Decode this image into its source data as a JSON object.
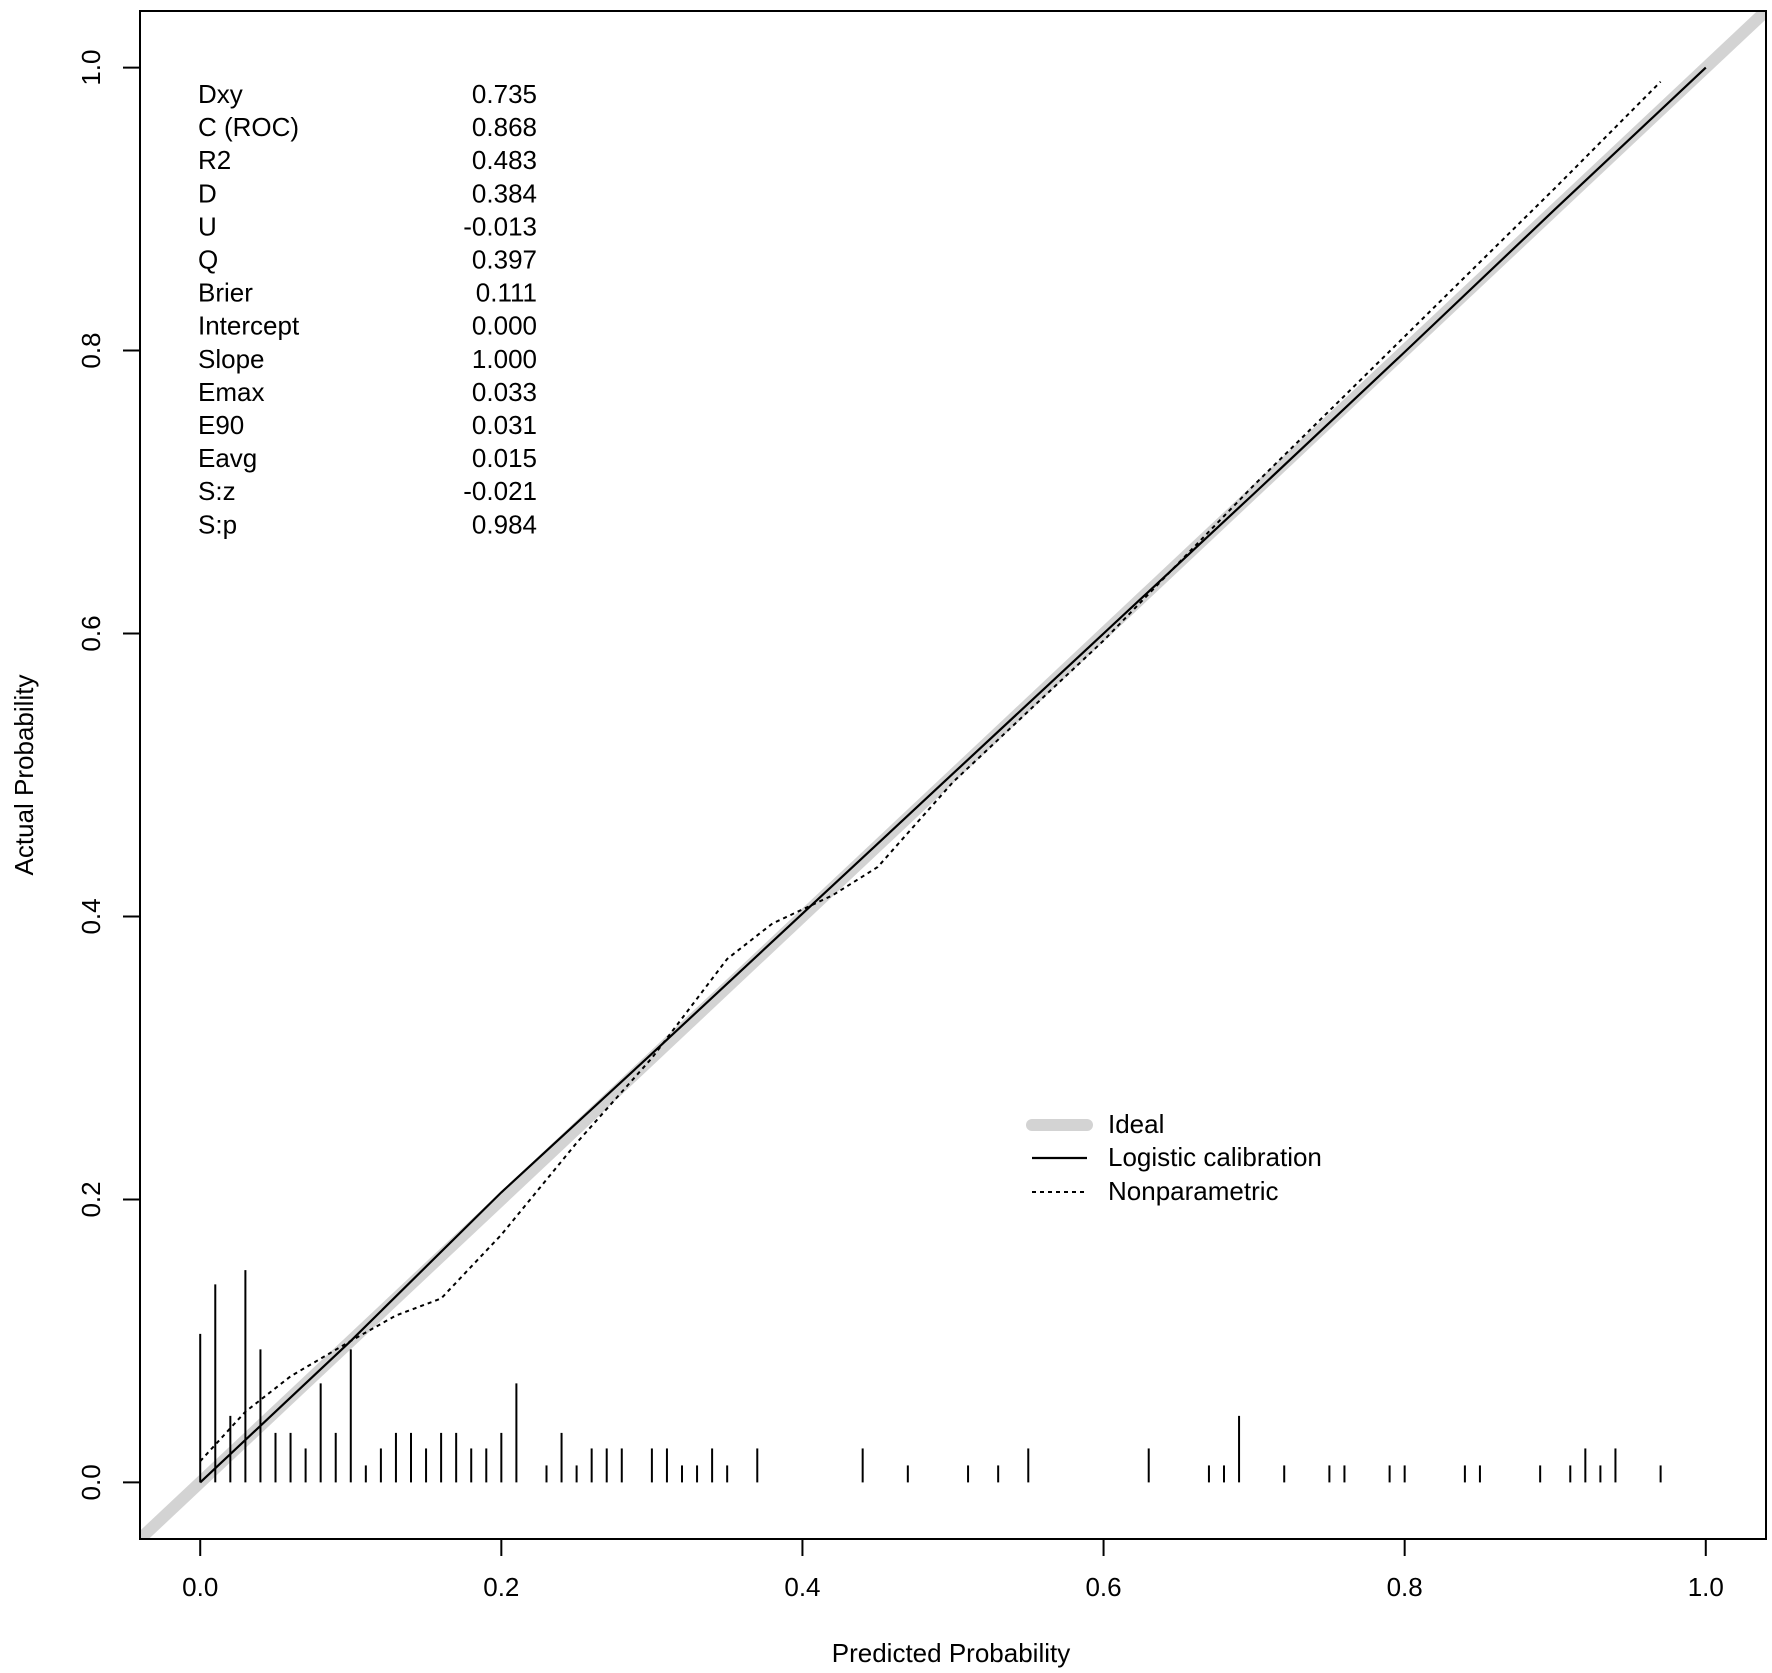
{
  "chart_data": {
    "type": "line",
    "title": "",
    "xlabel": "Predicted Probability",
    "ylabel": "Actual Probability",
    "xlim": [
      -0.04,
      1.04
    ],
    "ylim": [
      -0.04,
      1.04
    ],
    "x_ticks": [
      0.0,
      0.2,
      0.4,
      0.6,
      0.8,
      1.0
    ],
    "y_ticks": [
      0.0,
      0.2,
      0.4,
      0.6,
      0.8,
      1.0
    ],
    "x_tick_labels": [
      "0.0",
      "0.2",
      "0.4",
      "0.6",
      "0.8",
      "1.0"
    ],
    "y_tick_labels": [
      "0.0",
      "0.2",
      "0.4",
      "0.6",
      "0.8",
      "1.0"
    ],
    "grid": false,
    "legend_position": "bottom-right",
    "series": [
      {
        "name": "Ideal",
        "style": "thick-gray",
        "color": "#d3d3d3",
        "x": [
          -0.04,
          1.04
        ],
        "y": [
          -0.04,
          1.04
        ]
      },
      {
        "name": "Logistic calibration",
        "style": "solid",
        "color": "#000000",
        "x": [
          0.0,
          0.1,
          0.2,
          0.3,
          0.4,
          0.5,
          0.6,
          0.7,
          0.8,
          0.9,
          1.0
        ],
        "y": [
          0.0,
          0.1,
          0.205,
          0.303,
          0.402,
          0.501,
          0.6,
          0.699,
          0.799,
          0.9,
          1.0
        ]
      },
      {
        "name": "Nonparametric",
        "style": "dotted",
        "color": "#000000",
        "x": [
          0.0,
          0.03,
          0.06,
          0.1,
          0.13,
          0.16,
          0.2,
          0.25,
          0.3,
          0.35,
          0.38,
          0.42,
          0.45,
          0.5,
          0.55,
          0.6,
          0.65,
          0.7,
          0.8,
          0.9,
          0.97
        ],
        "y": [
          0.015,
          0.05,
          0.075,
          0.1,
          0.118,
          0.13,
          0.175,
          0.24,
          0.3,
          0.37,
          0.395,
          0.415,
          0.435,
          0.495,
          0.545,
          0.595,
          0.65,
          0.705,
          0.81,
          0.915,
          0.99
        ]
      }
    ],
    "rug": {
      "name": "Predicted probability distribution",
      "x": [
        0.0,
        0.01,
        0.02,
        0.03,
        0.04,
        0.05,
        0.06,
        0.07,
        0.08,
        0.09,
        0.1,
        0.11,
        0.12,
        0.13,
        0.14,
        0.15,
        0.16,
        0.17,
        0.18,
        0.19,
        0.2,
        0.21,
        0.23,
        0.24,
        0.25,
        0.26,
        0.27,
        0.28,
        0.3,
        0.31,
        0.32,
        0.33,
        0.34,
        0.35,
        0.37,
        0.44,
        0.47,
        0.51,
        0.53,
        0.55,
        0.63,
        0.67,
        0.68,
        0.69,
        0.72,
        0.75,
        0.76,
        0.79,
        0.8,
        0.84,
        0.85,
        0.89,
        0.91,
        0.92,
        0.93,
        0.94,
        0.97
      ],
      "height": [
        0.105,
        0.14,
        0.047,
        0.15,
        0.094,
        0.035,
        0.035,
        0.024,
        0.07,
        0.035,
        0.094,
        0.012,
        0.024,
        0.035,
        0.035,
        0.024,
        0.035,
        0.035,
        0.024,
        0.024,
        0.035,
        0.07,
        0.012,
        0.035,
        0.012,
        0.024,
        0.024,
        0.024,
        0.024,
        0.024,
        0.012,
        0.012,
        0.024,
        0.012,
        0.024,
        0.024,
        0.012,
        0.012,
        0.012,
        0.024,
        0.024,
        0.012,
        0.012,
        0.047,
        0.012,
        0.012,
        0.012,
        0.012,
        0.012,
        0.012,
        0.012,
        0.012,
        0.012,
        0.024,
        0.012,
        0.024,
        0.012
      ]
    },
    "stats": [
      {
        "label": "Dxy",
        "value": "0.735"
      },
      {
        "label": "C (ROC)",
        "value": "0.868"
      },
      {
        "label": "R2",
        "value": "0.483"
      },
      {
        "label": "D",
        "value": "0.384"
      },
      {
        "label": "U",
        "value": "-0.013"
      },
      {
        "label": "Q",
        "value": "0.397"
      },
      {
        "label": "Brier",
        "value": "0.111"
      },
      {
        "label": "Intercept",
        "value": "0.000"
      },
      {
        "label": "Slope",
        "value": "1.000"
      },
      {
        "label": "Emax",
        "value": "0.033"
      },
      {
        "label": "E90",
        "value": "0.031"
      },
      {
        "label": "Eavg",
        "value": "0.015"
      },
      {
        "label": "S:z",
        "value": "-0.021"
      },
      {
        "label": "S:p",
        "value": "0.984"
      }
    ]
  }
}
